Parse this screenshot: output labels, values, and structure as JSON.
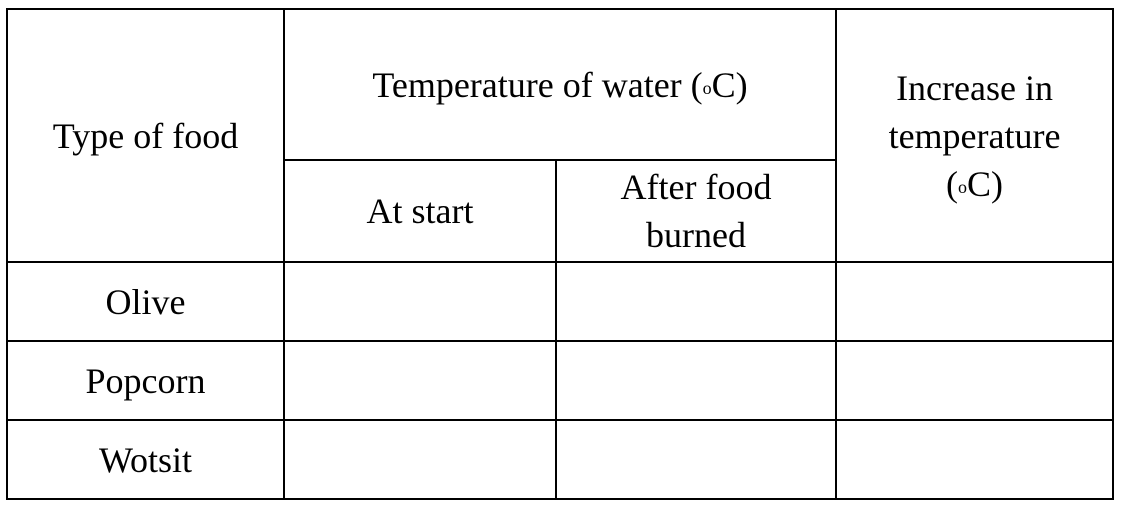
{
  "table": {
    "headers": {
      "type_of_food": "Type of food",
      "temperature_group": {
        "prefix": "Temperature of water (",
        "degree": "o",
        "suffix": "C)"
      },
      "increase": {
        "line1": "Increase in",
        "line2": "temperature",
        "open": "(",
        "degree": "o",
        "close": "C)"
      },
      "at_start": "At start",
      "after_food_burned": {
        "line1": "After food",
        "line2": "burned"
      }
    },
    "rows": [
      {
        "food": "Olive",
        "at_start": "",
        "after_food_burned": "",
        "increase": ""
      },
      {
        "food": "Popcorn",
        "at_start": "",
        "after_food_burned": "",
        "increase": ""
      },
      {
        "food": "Wotsit",
        "at_start": "",
        "after_food_burned": "",
        "increase": ""
      }
    ]
  }
}
